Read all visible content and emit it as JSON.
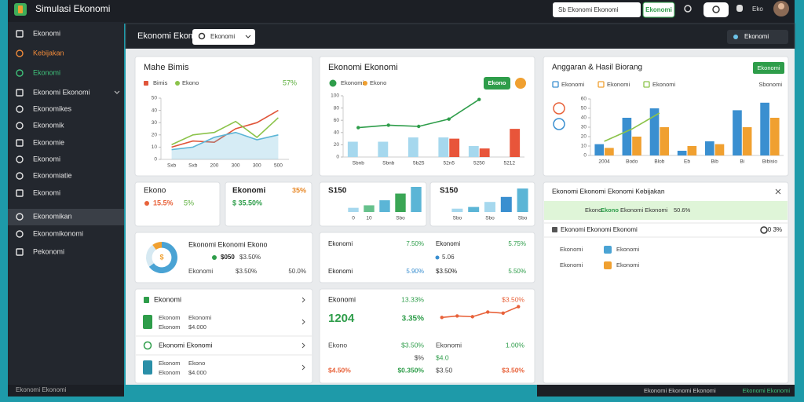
{
  "app": {
    "title": "Simulasi Ekonomi",
    "search": "Sb Ekonomi Ekonomi",
    "search_button": "Ekonomi",
    "user": "Eko"
  },
  "sidebar": {
    "items": [
      "Ekonomi",
      "Kebijakan",
      "Ekonomi",
      "Ekonomi Ekonomi",
      "Ekonomikes",
      "Ekonomik",
      "Ekonomie",
      "Ekonomi",
      "Ekonomiatie",
      "Ekonomi",
      "Ekonomikan",
      "Ekonomikonomi",
      "Pekonomi"
    ],
    "footer": "Ekonomi Ekonomi"
  },
  "header": {
    "title": "Ekonomi Ekonomi",
    "dropdown": "Ekonomi",
    "button": "Ekonomi"
  },
  "cards": {
    "trend": {
      "title": "Mahe Bimis",
      "stat": "57%"
    },
    "budget": {
      "title": "Ekonomi Ekonomi",
      "button": "Ekono"
    },
    "results": {
      "title": "Anggaran & Hasil Biorang",
      "button": "Ekonomi",
      "note": "Sbonomi"
    },
    "growth": {
      "title": "Ekono",
      "value": "15.5%",
      "change": "5%"
    },
    "market": {
      "title": "Ekonomi",
      "change": "35%",
      "value": "$ 35.50%"
    },
    "mini_left": {
      "title": "S150"
    },
    "mini_right": {
      "title": "S150"
    },
    "policy": {
      "title": "Ekonomi Ekonomi Ekonomi Kebijakan",
      "highlight": [
        "Ekono",
        "Ekono",
        "Ekonomi Ekonomi",
        "50.6%"
      ],
      "subtitle": "Ekonomi Ekonomi Ekonomi",
      "subvalue": "0 3%",
      "items": [
        {
          "label": "Ekonomi",
          "value": "Ekonomi"
        },
        {
          "label": "Ekonomi",
          "value": "Ekonomi"
        }
      ]
    },
    "share": {
      "title": "Ekonomi Ekonomi Ekono",
      "center": "$",
      "legend": [
        "$050",
        "$3.50%"
      ],
      "footer": [
        "Ekonomi",
        "$3.50%",
        "50.0%"
      ]
    },
    "rates": {
      "rows": [
        [
          "Ekonomi",
          "7.50%",
          "Ekonomi",
          "5.75%"
        ],
        [
          "Ekonomi",
          "5.90%",
          "$3.50%",
          "5.50%"
        ]
      ],
      "mid": "5.06"
    },
    "list": {
      "title": "Ekonomi",
      "item1": [
        [
          "Ekonom",
          "Ekonomi"
        ],
        [
          "Ekonom",
          "$4.000"
        ]
      ],
      "heading": "Ekonomi Ekonomi",
      "item2": [
        [
          "Ekonom",
          "Ekono"
        ],
        [
          "Ekonom",
          "$4.000"
        ]
      ]
    },
    "forecast": {
      "title": "Ekonomi",
      "change": "13.33%",
      "side": "$3.50%",
      "value": "1204",
      "value_change": "3.35%",
      "rows": [
        [
          "Ekono",
          "$3.50%",
          "Ekonomi",
          "1.00%"
        ],
        [
          "$%",
          "$4.0"
        ],
        [
          "$4.50%",
          "$0.350%",
          "$3.50",
          "$3.50%"
        ]
      ]
    }
  },
  "bottom": {
    "left": "Ekonomi Ekonomi Ekonomi",
    "right": "Ekonomi Ekonomi"
  },
  "chart_data": [
    {
      "type": "line",
      "categories": [
        "Sxb",
        "Sxb",
        "200",
        "300",
        "300",
        "500"
      ],
      "ylim": [
        0,
        50
      ],
      "yticks": [
        0,
        10,
        20,
        30,
        40,
        50
      ],
      "series": [
        {
          "name": "Bimis",
          "color": "#e0553a",
          "values": [
            10,
            15,
            14,
            25,
            30,
            40
          ]
        },
        {
          "name": "Ekono",
          "color": "#8bc34a",
          "values": [
            12,
            20,
            22,
            31,
            18,
            34
          ]
        },
        {
          "color": "#5bb5d6",
          "area": true,
          "values": [
            8,
            10,
            18,
            22,
            16,
            20
          ]
        }
      ]
    },
    {
      "type": "bar",
      "categories": [
        "Sbnb",
        "Sbnb",
        "5b25",
        "52n5",
        "5250",
        "5212"
      ],
      "ylim": [
        0,
        100
      ],
      "yticks": [
        0,
        20,
        40,
        60,
        80,
        100
      ],
      "series": [
        {
          "color": "#a6d8ee",
          "values": [
            25,
            25,
            32,
            32,
            18,
            null
          ]
        },
        {
          "name": "Ekono",
          "color": "#e8553a",
          "values": [
            null,
            null,
            null,
            30,
            14,
            46
          ]
        },
        {
          "name": "Ekonomi",
          "type": "line",
          "markers": true,
          "color": "#2e9d4a",
          "values": [
            48,
            52,
            50,
            62,
            94,
            null
          ]
        }
      ]
    },
    {
      "type": "bar",
      "categories": [
        "2004",
        "Bodo",
        "Blob",
        "Eb",
        "Bib",
        "Bi",
        "Bibisio"
      ],
      "ylim": [
        0,
        60
      ],
      "yticks": [
        0,
        10,
        20,
        30,
        40,
        50,
        60
      ],
      "series": [
        {
          "name": "Ekonomi",
          "color": "#3a8fd0",
          "values": [
            12,
            40,
            50,
            5,
            15,
            48,
            56
          ]
        },
        {
          "name": "Ekonomi",
          "color": "#f0a030",
          "values": [
            8,
            20,
            30,
            10,
            12,
            30,
            40
          ]
        },
        {
          "name": "Ekonomi",
          "type": "line",
          "color": "#8bc34a",
          "values": [
            15,
            28,
            45,
            null,
            null,
            null,
            null
          ]
        }
      ]
    },
    {
      "type": "bar",
      "categories": [
        "0",
        "10",
        null,
        "Sbo",
        null
      ],
      "ylim": [
        0,
        30
      ],
      "values": [
        5,
        8,
        14,
        22,
        30
      ],
      "colors": [
        "#a6d8ee",
        "#66c18c",
        "#5bb5d6",
        "#3aa655",
        "#5bb5d6"
      ]
    },
    {
      "type": "bar",
      "categories": [
        "Sbo",
        null,
        "Sbo",
        null,
        "Sbo"
      ],
      "ylim": [
        0,
        30
      ],
      "values": [
        4,
        6,
        12,
        18,
        28
      ],
      "colors": [
        "#a6d8ee",
        "#5bb5d6",
        "#a6d8ee",
        "#3a8fd0",
        "#5bb5d6"
      ]
    },
    {
      "type": "pie",
      "hole": true,
      "values": [
        65,
        25,
        10
      ],
      "colors": [
        "#4aa3d4",
        "#d6e9f2",
        "#f0a030"
      ]
    },
    {
      "type": "line",
      "ylim": [
        0,
        70
      ],
      "values": [
        30,
        34,
        32,
        45,
        42,
        60
      ],
      "color": "#e8623a",
      "markers": true
    }
  ]
}
